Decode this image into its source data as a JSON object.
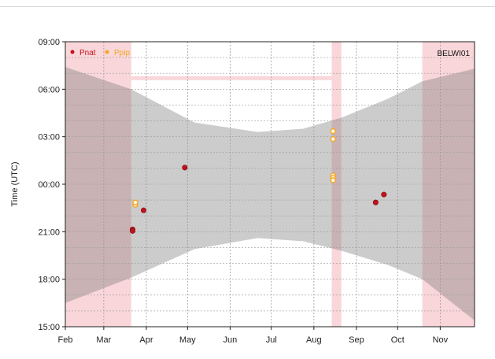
{
  "chart_data": {
    "type": "scatter",
    "title": "",
    "station": "BELWI01",
    "ylabel": "Time (UTC)",
    "xlabel": "",
    "x_tick_labels": [
      "Feb",
      "Mar",
      "Apr",
      "May",
      "Jun",
      "Jul",
      "Aug",
      "Sep",
      "Oct",
      "Nov"
    ],
    "x_ticks_day": [
      32,
      60,
      91,
      121,
      152,
      182,
      213,
      244,
      274,
      305
    ],
    "xlim_day": [
      32,
      330
    ],
    "y_ticks": [
      {
        "label": "09:00",
        "hour": 33
      },
      {
        "label": "06:00",
        "hour": 30
      },
      {
        "label": "03:00",
        "hour": 27
      },
      {
        "label": "00:00",
        "hour": 24
      },
      {
        "label": "21:00",
        "hour": 21
      },
      {
        "label": "18:00",
        "hour": 18
      },
      {
        "label": "15:00",
        "hour": 15
      }
    ],
    "ylim_hour": [
      15,
      33
    ],
    "grid": true,
    "legend_position": "top-left",
    "legend": [
      {
        "name": "Pnat",
        "color": "#c0141c"
      },
      {
        "name": "Ppip",
        "color": "#f5a623"
      }
    ],
    "no_data_periods_day": [
      [
        32,
        80
      ],
      [
        226,
        233
      ],
      [
        292,
        330
      ]
    ],
    "night_band": {
      "days": [
        32,
        80,
        126,
        172,
        205,
        233,
        267,
        292,
        330
      ],
      "sunset_hour": [
        16.5,
        18.1,
        19.9,
        20.6,
        20.4,
        19.8,
        18.9,
        18.0,
        15.4
      ],
      "sunrise_hour": [
        31.4,
        30.0,
        27.9,
        27.3,
        27.5,
        28.2,
        29.4,
        30.5,
        31.3
      ]
    },
    "gap_line": {
      "day_range": [
        80,
        226
      ],
      "hour": 30.7
    },
    "series": [
      {
        "name": "Pnat",
        "color": "#c0141c",
        "points": [
          {
            "day": 81,
            "hour": 21.15
          },
          {
            "day": 81,
            "hour": 21.05
          },
          {
            "day": 89,
            "hour": 22.35
          },
          {
            "day": 119,
            "hour": 25.05
          },
          {
            "day": 258,
            "hour": 22.85
          },
          {
            "day": 264,
            "hour": 23.35
          }
        ]
      },
      {
        "name": "Ppip",
        "color": "#f5a623",
        "points": [
          {
            "day": 83,
            "hour": 22.7
          },
          {
            "day": 83,
            "hour": 22.85
          },
          {
            "day": 227,
            "hour": 27.35
          },
          {
            "day": 227,
            "hour": 26.85
          },
          {
            "day": 227,
            "hour": 24.55
          },
          {
            "day": 227,
            "hour": 24.4
          },
          {
            "day": 227,
            "hour": 24.25
          }
        ]
      }
    ]
  }
}
